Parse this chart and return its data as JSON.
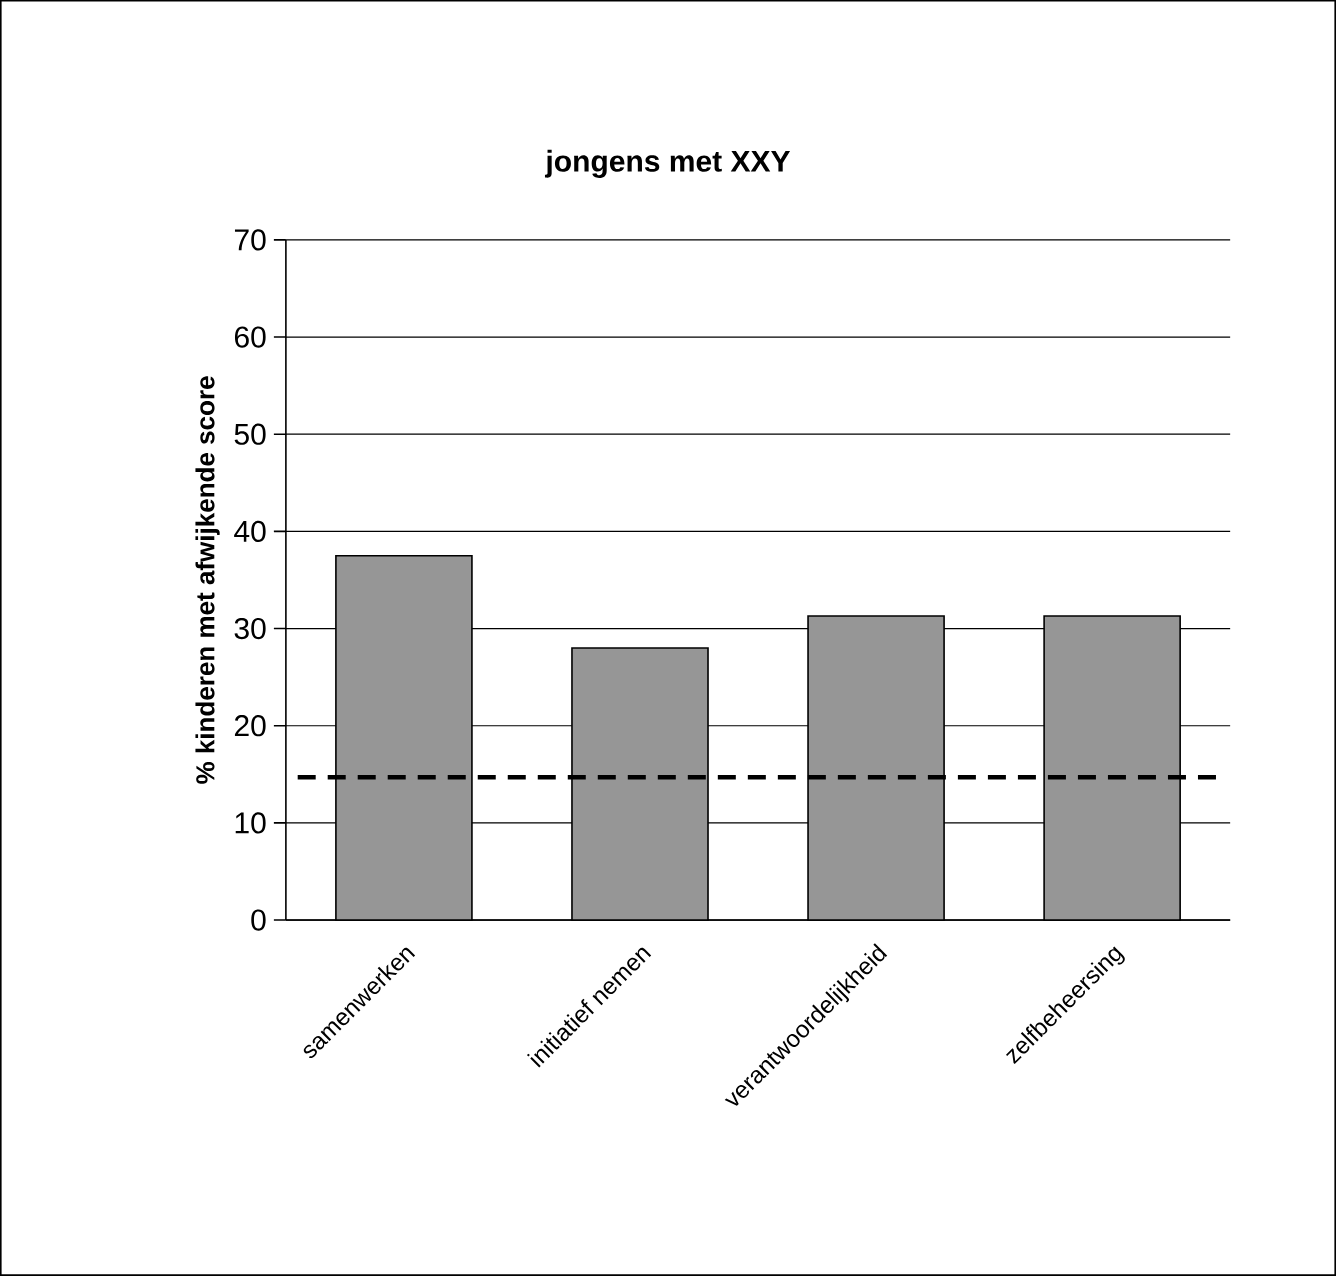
{
  "chart_data": {
    "type": "bar",
    "title": "jongens met XXY",
    "ylabel": "%  kinderen met afwijkende score",
    "categories": [
      "samenwerken",
      "initiatief nemen",
      "verantwoordelijkheid",
      "zelfbeheersing"
    ],
    "values": [
      37.5,
      28,
      31.3,
      31.3
    ],
    "color": "#969696",
    "ylim": [
      0,
      70
    ],
    "yticks": [
      0,
      10,
      20,
      30,
      40,
      50,
      60,
      70
    ],
    "grid": "y",
    "ref_lines": [
      {
        "axis": "y",
        "value": 14.7,
        "line_style": "dashed",
        "color": "#000000"
      }
    ]
  }
}
